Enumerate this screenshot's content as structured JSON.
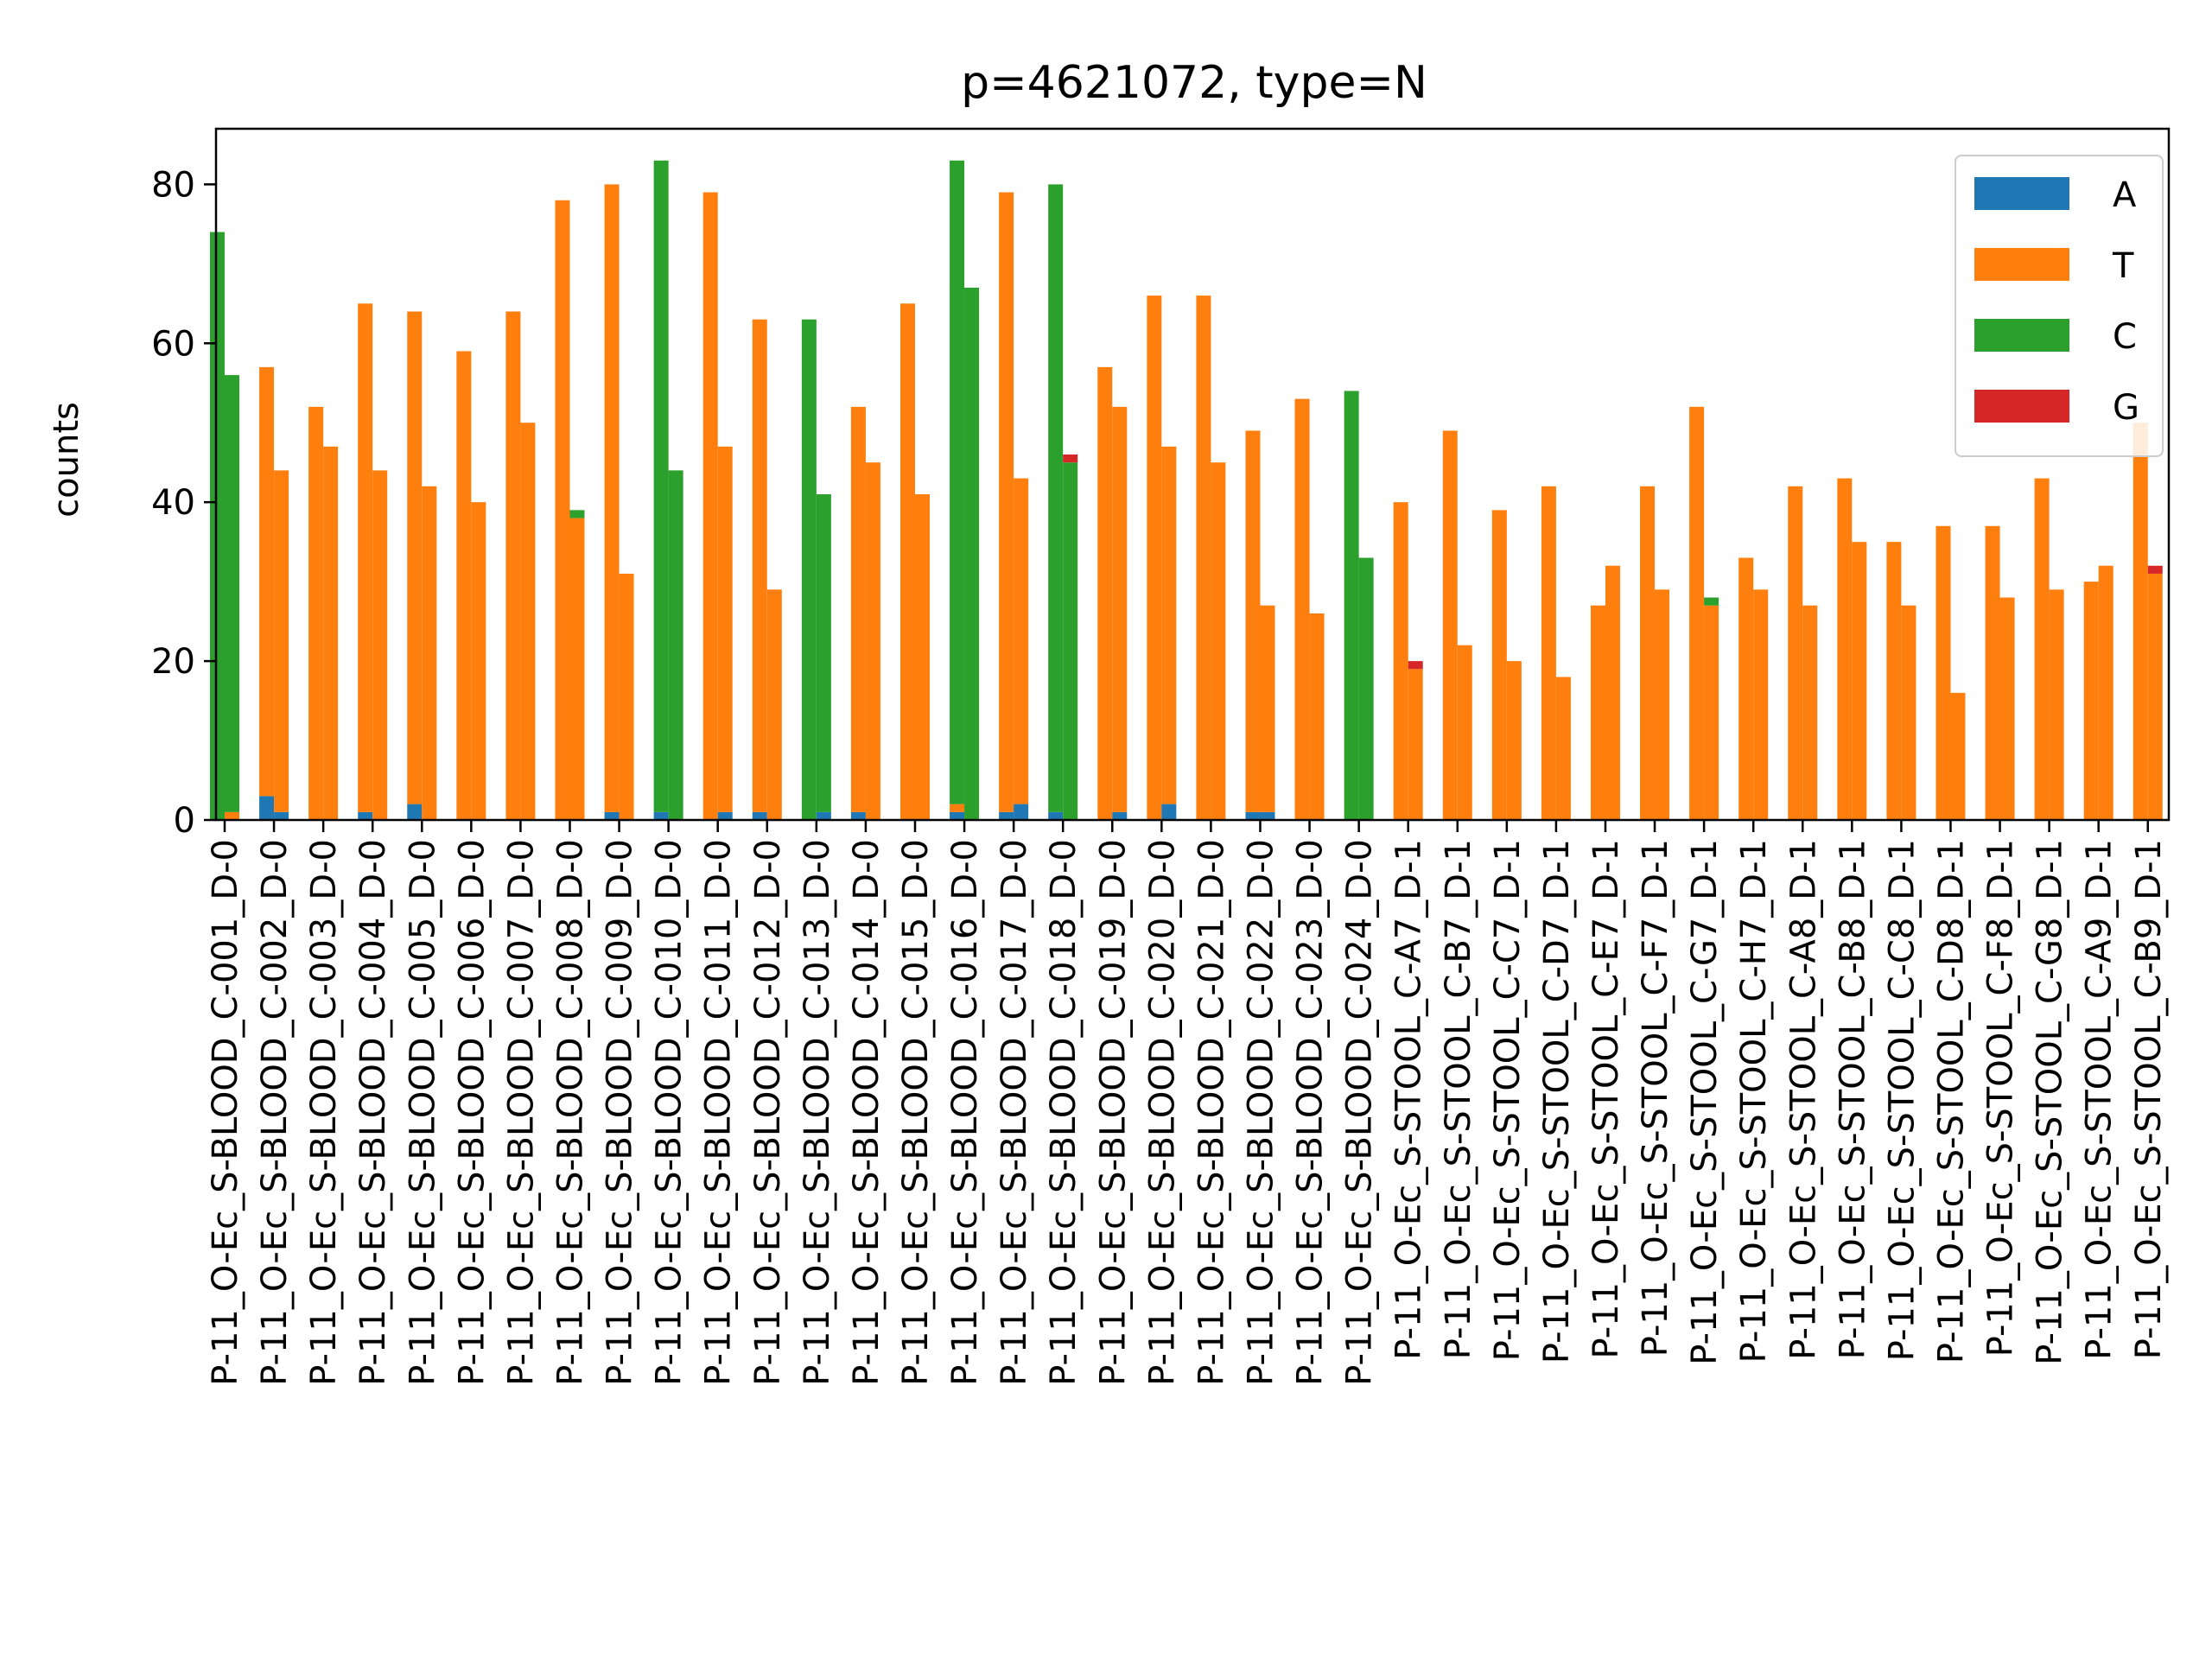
{
  "chart_data": {
    "type": "bar",
    "stacked": true,
    "title": "p=4621072, type=N",
    "xlabel": "",
    "ylabel": "counts",
    "ylim": [
      0,
      87
    ],
    "yticks": [
      0,
      20,
      40,
      60,
      80
    ],
    "legend_position": "top-right",
    "colors": {
      "A": "#1f77b4",
      "T": "#ff7f0e",
      "C": "#2ca02c",
      "G": "#d62728"
    },
    "legend": [
      {
        "key": "A",
        "label": "A"
      },
      {
        "key": "T",
        "label": "T"
      },
      {
        "key": "C",
        "label": "C"
      },
      {
        "key": "G",
        "label": "G"
      }
    ],
    "categories": [
      "P-11_O-Ec_S-BLOOD_C-001_D-0",
      "P-11_O-Ec_S-BLOOD_C-002_D-0",
      "P-11_O-Ec_S-BLOOD_C-003_D-0",
      "P-11_O-Ec_S-BLOOD_C-004_D-0",
      "P-11_O-Ec_S-BLOOD_C-005_D-0",
      "P-11_O-Ec_S-BLOOD_C-006_D-0",
      "P-11_O-Ec_S-BLOOD_C-007_D-0",
      "P-11_O-Ec_S-BLOOD_C-008_D-0",
      "P-11_O-Ec_S-BLOOD_C-009_D-0",
      "P-11_O-Ec_S-BLOOD_C-010_D-0",
      "P-11_O-Ec_S-BLOOD_C-011_D-0",
      "P-11_O-Ec_S-BLOOD_C-012_D-0",
      "P-11_O-Ec_S-BLOOD_C-013_D-0",
      "P-11_O-Ec_S-BLOOD_C-014_D-0",
      "P-11_O-Ec_S-BLOOD_C-015_D-0",
      "P-11_O-Ec_S-BLOOD_C-016_D-0",
      "P-11_O-Ec_S-BLOOD_C-017_D-0",
      "P-11_O-Ec_S-BLOOD_C-018_D-0",
      "P-11_O-Ec_S-BLOOD_C-019_D-0",
      "P-11_O-Ec_S-BLOOD_C-020_D-0",
      "P-11_O-Ec_S-BLOOD_C-021_D-0",
      "P-11_O-Ec_S-BLOOD_C-022_D-0",
      "P-11_O-Ec_S-BLOOD_C-023_D-0",
      "P-11_O-Ec_S-BLOOD_C-024_D-0",
      "P-11_O-Ec_S-STOOL_C-A7_D-1",
      "P-11_O-Ec_S-STOOL_C-B7_D-1",
      "P-11_O-Ec_S-STOOL_C-C7_D-1",
      "P-11_O-Ec_S-STOOL_C-D7_D-1",
      "P-11_O-Ec_S-STOOL_C-E7_D-1",
      "P-11_O-Ec_S-STOOL_C-F7_D-1",
      "P-11_O-Ec_S-STOOL_C-G7_D-1",
      "P-11_O-Ec_S-STOOL_C-H7_D-1",
      "P-11_O-Ec_S-STOOL_C-A8_D-1",
      "P-11_O-Ec_S-STOOL_C-B8_D-1",
      "P-11_O-Ec_S-STOOL_C-C8_D-1",
      "P-11_O-Ec_S-STOOL_C-D8_D-1",
      "P-11_O-Ec_S-STOOL_C-F8_D-1",
      "P-11_O-Ec_S-STOOL_C-G8_D-1",
      "P-11_O-Ec_S-STOOL_C-A9_D-1",
      "P-11_O-Ec_S-STOOL_C-B9_D-1"
    ],
    "groups": [
      {
        "forward": {
          "A": 0,
          "T": 0,
          "C": 74,
          "G": 0
        },
        "reverse": {
          "A": 0,
          "T": 1,
          "C": 55,
          "G": 0
        }
      },
      {
        "forward": {
          "A": 3,
          "T": 54,
          "C": 0,
          "G": 0
        },
        "reverse": {
          "A": 1,
          "T": 43,
          "C": 0,
          "G": 0
        }
      },
      {
        "forward": {
          "A": 0,
          "T": 52,
          "C": 0,
          "G": 0
        },
        "reverse": {
          "A": 0,
          "T": 47,
          "C": 0,
          "G": 0
        }
      },
      {
        "forward": {
          "A": 1,
          "T": 64,
          "C": 0,
          "G": 0
        },
        "reverse": {
          "A": 0,
          "T": 44,
          "C": 0,
          "G": 0
        }
      },
      {
        "forward": {
          "A": 2,
          "T": 62,
          "C": 0,
          "G": 0
        },
        "reverse": {
          "A": 0,
          "T": 42,
          "C": 0,
          "G": 0
        }
      },
      {
        "forward": {
          "A": 0,
          "T": 59,
          "C": 0,
          "G": 0
        },
        "reverse": {
          "A": 0,
          "T": 40,
          "C": 0,
          "G": 0
        }
      },
      {
        "forward": {
          "A": 0,
          "T": 64,
          "C": 0,
          "G": 0
        },
        "reverse": {
          "A": 0,
          "T": 50,
          "C": 0,
          "G": 0
        }
      },
      {
        "forward": {
          "A": 0,
          "T": 78,
          "C": 0,
          "G": 0
        },
        "reverse": {
          "A": 0,
          "T": 38,
          "C": 1,
          "G": 0
        }
      },
      {
        "forward": {
          "A": 1,
          "T": 79,
          "C": 0,
          "G": 0
        },
        "reverse": {
          "A": 0,
          "T": 31,
          "C": 0,
          "G": 0
        }
      },
      {
        "forward": {
          "A": 1,
          "T": 0,
          "C": 82,
          "G": 0
        },
        "reverse": {
          "A": 0,
          "T": 0,
          "C": 44,
          "G": 0
        }
      },
      {
        "forward": {
          "A": 0,
          "T": 79,
          "C": 0,
          "G": 0
        },
        "reverse": {
          "A": 1,
          "T": 46,
          "C": 0,
          "G": 0
        }
      },
      {
        "forward": {
          "A": 1,
          "T": 62,
          "C": 0,
          "G": 0
        },
        "reverse": {
          "A": 0,
          "T": 29,
          "C": 0,
          "G": 0
        }
      },
      {
        "forward": {
          "A": 0,
          "T": 0,
          "C": 63,
          "G": 0
        },
        "reverse": {
          "A": 1,
          "T": 0,
          "C": 40,
          "G": 0
        }
      },
      {
        "forward": {
          "A": 1,
          "T": 51,
          "C": 0,
          "G": 0
        },
        "reverse": {
          "A": 0,
          "T": 45,
          "C": 0,
          "G": 0
        }
      },
      {
        "forward": {
          "A": 0,
          "T": 65,
          "C": 0,
          "G": 0
        },
        "reverse": {
          "A": 0,
          "T": 41,
          "C": 0,
          "G": 0
        }
      },
      {
        "forward": {
          "A": 1,
          "T": 1,
          "C": 81,
          "G": 0
        },
        "reverse": {
          "A": 0,
          "T": 0,
          "C": 67,
          "G": 0
        }
      },
      {
        "forward": {
          "A": 1,
          "T": 78,
          "C": 0,
          "G": 0
        },
        "reverse": {
          "A": 2,
          "T": 41,
          "C": 0,
          "G": 0
        }
      },
      {
        "forward": {
          "A": 1,
          "T": 0,
          "C": 79,
          "G": 0
        },
        "reverse": {
          "A": 0,
          "T": 0,
          "C": 45,
          "G": 1
        }
      },
      {
        "forward": {
          "A": 0,
          "T": 57,
          "C": 0,
          "G": 0
        },
        "reverse": {
          "A": 1,
          "T": 51,
          "C": 0,
          "G": 0
        }
      },
      {
        "forward": {
          "A": 0,
          "T": 66,
          "C": 0,
          "G": 0
        },
        "reverse": {
          "A": 2,
          "T": 45,
          "C": 0,
          "G": 0
        }
      },
      {
        "forward": {
          "A": 0,
          "T": 66,
          "C": 0,
          "G": 0
        },
        "reverse": {
          "A": 0,
          "T": 45,
          "C": 0,
          "G": 0
        }
      },
      {
        "forward": {
          "A": 1,
          "T": 48,
          "C": 0,
          "G": 0
        },
        "reverse": {
          "A": 1,
          "T": 26,
          "C": 0,
          "G": 0
        }
      },
      {
        "forward": {
          "A": 0,
          "T": 53,
          "C": 0,
          "G": 0
        },
        "reverse": {
          "A": 0,
          "T": 26,
          "C": 0,
          "G": 0
        }
      },
      {
        "forward": {
          "A": 0,
          "T": 0,
          "C": 54,
          "G": 0
        },
        "reverse": {
          "A": 0,
          "T": 0,
          "C": 33,
          "G": 0
        }
      },
      {
        "forward": {
          "A": 0,
          "T": 40,
          "C": 0,
          "G": 0
        },
        "reverse": {
          "A": 0,
          "T": 19,
          "C": 0,
          "G": 1
        }
      },
      {
        "forward": {
          "A": 0,
          "T": 49,
          "C": 0,
          "G": 0
        },
        "reverse": {
          "A": 0,
          "T": 22,
          "C": 0,
          "G": 0
        }
      },
      {
        "forward": {
          "A": 0,
          "T": 39,
          "C": 0,
          "G": 0
        },
        "reverse": {
          "A": 0,
          "T": 20,
          "C": 0,
          "G": 0
        }
      },
      {
        "forward": {
          "A": 0,
          "T": 42,
          "C": 0,
          "G": 0
        },
        "reverse": {
          "A": 0,
          "T": 18,
          "C": 0,
          "G": 0
        }
      },
      {
        "forward": {
          "A": 0,
          "T": 27,
          "C": 0,
          "G": 0
        },
        "reverse": {
          "A": 0,
          "T": 32,
          "C": 0,
          "G": 0
        }
      },
      {
        "forward": {
          "A": 0,
          "T": 42,
          "C": 0,
          "G": 0
        },
        "reverse": {
          "A": 0,
          "T": 29,
          "C": 0,
          "G": 0
        }
      },
      {
        "forward": {
          "A": 0,
          "T": 52,
          "C": 0,
          "G": 0
        },
        "reverse": {
          "A": 0,
          "T": 27,
          "C": 1,
          "G": 0
        }
      },
      {
        "forward": {
          "A": 0,
          "T": 33,
          "C": 0,
          "G": 0
        },
        "reverse": {
          "A": 0,
          "T": 29,
          "C": 0,
          "G": 0
        }
      },
      {
        "forward": {
          "A": 0,
          "T": 42,
          "C": 0,
          "G": 0
        },
        "reverse": {
          "A": 0,
          "T": 27,
          "C": 0,
          "G": 0
        }
      },
      {
        "forward": {
          "A": 0,
          "T": 43,
          "C": 0,
          "G": 0
        },
        "reverse": {
          "A": 0,
          "T": 35,
          "C": 0,
          "G": 0
        }
      },
      {
        "forward": {
          "A": 0,
          "T": 35,
          "C": 0,
          "G": 0
        },
        "reverse": {
          "A": 0,
          "T": 27,
          "C": 0,
          "G": 0
        }
      },
      {
        "forward": {
          "A": 0,
          "T": 37,
          "C": 0,
          "G": 0
        },
        "reverse": {
          "A": 0,
          "T": 16,
          "C": 0,
          "G": 0
        }
      },
      {
        "forward": {
          "A": 0,
          "T": 37,
          "C": 0,
          "G": 0
        },
        "reverse": {
          "A": 0,
          "T": 28,
          "C": 0,
          "G": 0
        }
      },
      {
        "forward": {
          "A": 0,
          "T": 43,
          "C": 0,
          "G": 0
        },
        "reverse": {
          "A": 0,
          "T": 29,
          "C": 0,
          "G": 0
        }
      },
      {
        "forward": {
          "A": 0,
          "T": 30,
          "C": 0,
          "G": 0
        },
        "reverse": {
          "A": 0,
          "T": 32,
          "C": 0,
          "G": 0
        }
      },
      {
        "forward": {
          "A": 0,
          "T": 50,
          "C": 0,
          "G": 0
        },
        "reverse": {
          "A": 0,
          "T": 31,
          "C": 0,
          "G": 1
        }
      }
    ]
  }
}
